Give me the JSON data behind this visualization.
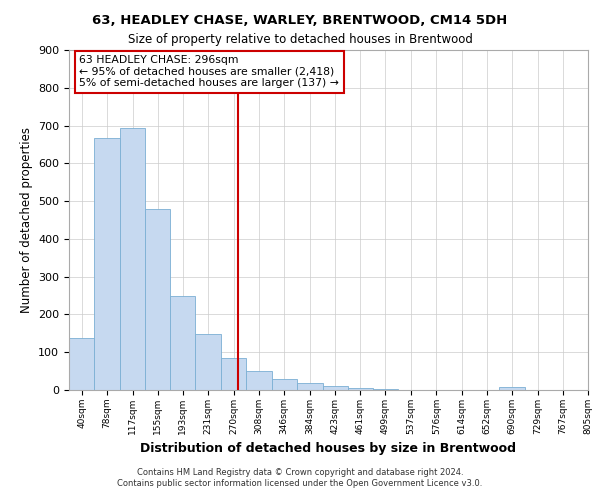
{
  "title": "63, HEADLEY CHASE, WARLEY, BRENTWOOD, CM14 5DH",
  "subtitle": "Size of property relative to detached houses in Brentwood",
  "xlabel": "Distribution of detached houses by size in Brentwood",
  "ylabel": "Number of detached properties",
  "bar_edges": [
    40,
    78,
    117,
    155,
    193,
    231,
    270,
    308,
    346,
    384,
    423,
    461,
    499,
    537,
    576,
    614,
    652,
    690,
    729,
    767,
    805
  ],
  "bar_heights": [
    137,
    668,
    693,
    480,
    248,
    148,
    84,
    50,
    28,
    18,
    10,
    5,
    3,
    0,
    0,
    0,
    0,
    8,
    0,
    0,
    0
  ],
  "bar_color": "#c6d9f0",
  "bar_edge_color": "#7bafd4",
  "property_line_x": 296,
  "property_line_color": "#cc0000",
  "ylim": [
    0,
    900
  ],
  "yticks": [
    0,
    100,
    200,
    300,
    400,
    500,
    600,
    700,
    800,
    900
  ],
  "annotation_line1": "63 HEADLEY CHASE: 296sqm",
  "annotation_line2": "← 95% of detached houses are smaller (2,418)",
  "annotation_line3": "5% of semi-detached houses are larger (137) →",
  "footer_line1": "Contains HM Land Registry data © Crown copyright and database right 2024.",
  "footer_line2": "Contains public sector information licensed under the Open Government Licence v3.0.",
  "background_color": "#ffffff",
  "grid_color": "#cccccc"
}
